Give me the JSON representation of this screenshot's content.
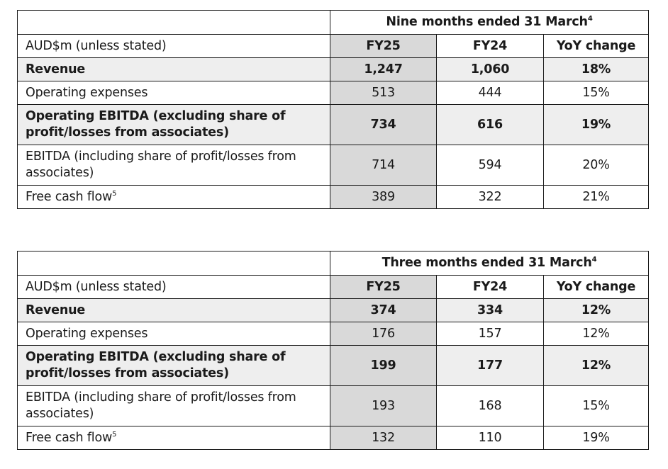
{
  "tables": [
    {
      "period_label": "Nine months ended 31 March",
      "period_note": "4",
      "unit_label": "AUD$m (unless stated)",
      "col_fy25": "FY25",
      "col_fy24": "FY24",
      "col_yoy": "YoY change",
      "rows": [
        {
          "label": "Revenue",
          "note": "",
          "fy25": "1,247",
          "fy24": "1,060",
          "yoy": "18%"
        },
        {
          "label": "Operating expenses",
          "note": "",
          "fy25": "513",
          "fy24": "444",
          "yoy": "15%"
        },
        {
          "label": "Operating EBITDA (excluding share of profit/losses from associates)",
          "note": "",
          "fy25": "734",
          "fy24": "616",
          "yoy": "19%"
        },
        {
          "label": "EBITDA (including share of profit/losses from associates)",
          "note": "",
          "fy25": "714",
          "fy24": "594",
          "yoy": "20%"
        },
        {
          "label": "Free cash flow",
          "note": "5",
          "fy25": "389",
          "fy24": "322",
          "yoy": "21%"
        }
      ]
    },
    {
      "period_label": "Three months ended 31 March",
      "period_note": "4",
      "unit_label": "AUD$m (unless stated)",
      "col_fy25": "FY25",
      "col_fy24": "FY24",
      "col_yoy": "YoY change",
      "rows": [
        {
          "label": "Revenue",
          "note": "",
          "fy25": "374",
          "fy24": "334",
          "yoy": "12%"
        },
        {
          "label": "Operating expenses",
          "note": "",
          "fy25": "176",
          "fy24": "157",
          "yoy": "12%"
        },
        {
          "label": "Operating EBITDA (excluding share of profit/losses from associates)",
          "note": "",
          "fy25": "199",
          "fy24": "177",
          "yoy": "12%"
        },
        {
          "label": "EBITDA (including share of profit/losses from associates)",
          "note": "",
          "fy25": "193",
          "fy24": "168",
          "yoy": "15%"
        },
        {
          "label": "Free cash flow",
          "note": "5",
          "fy25": "132",
          "fy24": "110",
          "yoy": "19%"
        }
      ]
    }
  ]
}
